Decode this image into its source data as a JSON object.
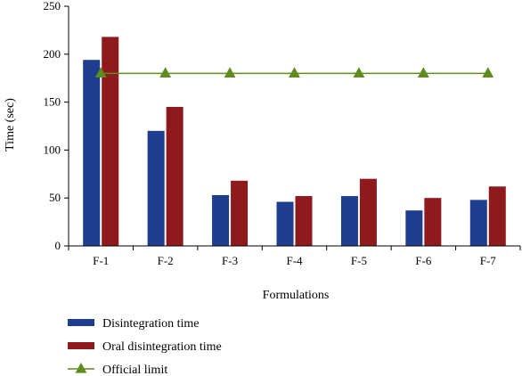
{
  "chart_data": {
    "type": "bar",
    "categories": [
      "F-1",
      "F-2",
      "F-3",
      "F-4",
      "F-5",
      "F-6",
      "F-7"
    ],
    "series": [
      {
        "name": "Disintegration time",
        "type": "bar",
        "color": "#1f3d8f",
        "values": [
          194,
          120,
          53,
          46,
          52,
          37,
          48
        ]
      },
      {
        "name": "Oral disintegration time",
        "type": "bar",
        "color": "#8e1a1e",
        "values": [
          218,
          145,
          68,
          52,
          70,
          50,
          62
        ]
      },
      {
        "name": "Official limit",
        "type": "line",
        "marker": "triangle",
        "color": "#5e8c1f",
        "values": [
          180,
          180,
          180,
          180,
          180,
          180,
          180
        ]
      }
    ],
    "title": "",
    "xlabel": "Formulations",
    "ylabel": "Time (sec)",
    "ylim": [
      0,
      250
    ],
    "yticks": [
      0,
      50,
      100,
      150,
      200,
      250
    ],
    "grid": false,
    "legend_position": "bottom-left"
  }
}
